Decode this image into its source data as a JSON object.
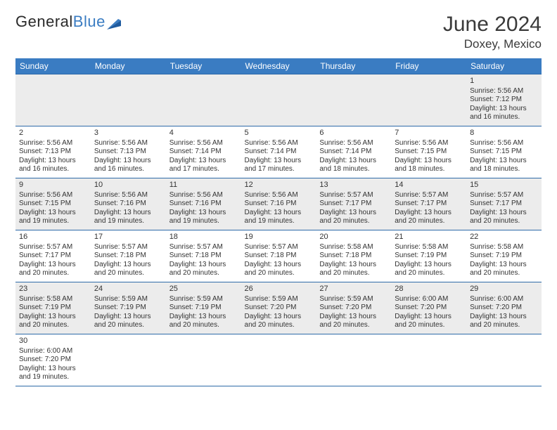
{
  "logo": {
    "text1": "General",
    "text2": "Blue"
  },
  "title": "June 2024",
  "location": "Doxey, Mexico",
  "colors": {
    "header_bg": "#3a7cc2",
    "header_text": "#ffffff",
    "row_odd_bg": "#ececec",
    "row_even_bg": "#ffffff",
    "border": "#2e6aa8",
    "text": "#333333"
  },
  "day_headers": [
    "Sunday",
    "Monday",
    "Tuesday",
    "Wednesday",
    "Thursday",
    "Friday",
    "Saturday"
  ],
  "weeks": [
    [
      null,
      null,
      null,
      null,
      null,
      null,
      {
        "n": "1",
        "sr": "Sunrise: 5:56 AM",
        "ss": "Sunset: 7:12 PM",
        "dl": "Daylight: 13 hours and 16 minutes."
      }
    ],
    [
      {
        "n": "2",
        "sr": "Sunrise: 5:56 AM",
        "ss": "Sunset: 7:13 PM",
        "dl": "Daylight: 13 hours and 16 minutes."
      },
      {
        "n": "3",
        "sr": "Sunrise: 5:56 AM",
        "ss": "Sunset: 7:13 PM",
        "dl": "Daylight: 13 hours and 16 minutes."
      },
      {
        "n": "4",
        "sr": "Sunrise: 5:56 AM",
        "ss": "Sunset: 7:14 PM",
        "dl": "Daylight: 13 hours and 17 minutes."
      },
      {
        "n": "5",
        "sr": "Sunrise: 5:56 AM",
        "ss": "Sunset: 7:14 PM",
        "dl": "Daylight: 13 hours and 17 minutes."
      },
      {
        "n": "6",
        "sr": "Sunrise: 5:56 AM",
        "ss": "Sunset: 7:14 PM",
        "dl": "Daylight: 13 hours and 18 minutes."
      },
      {
        "n": "7",
        "sr": "Sunrise: 5:56 AM",
        "ss": "Sunset: 7:15 PM",
        "dl": "Daylight: 13 hours and 18 minutes."
      },
      {
        "n": "8",
        "sr": "Sunrise: 5:56 AM",
        "ss": "Sunset: 7:15 PM",
        "dl": "Daylight: 13 hours and 18 minutes."
      }
    ],
    [
      {
        "n": "9",
        "sr": "Sunrise: 5:56 AM",
        "ss": "Sunset: 7:15 PM",
        "dl": "Daylight: 13 hours and 19 minutes."
      },
      {
        "n": "10",
        "sr": "Sunrise: 5:56 AM",
        "ss": "Sunset: 7:16 PM",
        "dl": "Daylight: 13 hours and 19 minutes."
      },
      {
        "n": "11",
        "sr": "Sunrise: 5:56 AM",
        "ss": "Sunset: 7:16 PM",
        "dl": "Daylight: 13 hours and 19 minutes."
      },
      {
        "n": "12",
        "sr": "Sunrise: 5:56 AM",
        "ss": "Sunset: 7:16 PM",
        "dl": "Daylight: 13 hours and 19 minutes."
      },
      {
        "n": "13",
        "sr": "Sunrise: 5:57 AM",
        "ss": "Sunset: 7:17 PM",
        "dl": "Daylight: 13 hours and 20 minutes."
      },
      {
        "n": "14",
        "sr": "Sunrise: 5:57 AM",
        "ss": "Sunset: 7:17 PM",
        "dl": "Daylight: 13 hours and 20 minutes."
      },
      {
        "n": "15",
        "sr": "Sunrise: 5:57 AM",
        "ss": "Sunset: 7:17 PM",
        "dl": "Daylight: 13 hours and 20 minutes."
      }
    ],
    [
      {
        "n": "16",
        "sr": "Sunrise: 5:57 AM",
        "ss": "Sunset: 7:17 PM",
        "dl": "Daylight: 13 hours and 20 minutes."
      },
      {
        "n": "17",
        "sr": "Sunrise: 5:57 AM",
        "ss": "Sunset: 7:18 PM",
        "dl": "Daylight: 13 hours and 20 minutes."
      },
      {
        "n": "18",
        "sr": "Sunrise: 5:57 AM",
        "ss": "Sunset: 7:18 PM",
        "dl": "Daylight: 13 hours and 20 minutes."
      },
      {
        "n": "19",
        "sr": "Sunrise: 5:57 AM",
        "ss": "Sunset: 7:18 PM",
        "dl": "Daylight: 13 hours and 20 minutes."
      },
      {
        "n": "20",
        "sr": "Sunrise: 5:58 AM",
        "ss": "Sunset: 7:18 PM",
        "dl": "Daylight: 13 hours and 20 minutes."
      },
      {
        "n": "21",
        "sr": "Sunrise: 5:58 AM",
        "ss": "Sunset: 7:19 PM",
        "dl": "Daylight: 13 hours and 20 minutes."
      },
      {
        "n": "22",
        "sr": "Sunrise: 5:58 AM",
        "ss": "Sunset: 7:19 PM",
        "dl": "Daylight: 13 hours and 20 minutes."
      }
    ],
    [
      {
        "n": "23",
        "sr": "Sunrise: 5:58 AM",
        "ss": "Sunset: 7:19 PM",
        "dl": "Daylight: 13 hours and 20 minutes."
      },
      {
        "n": "24",
        "sr": "Sunrise: 5:59 AM",
        "ss": "Sunset: 7:19 PM",
        "dl": "Daylight: 13 hours and 20 minutes."
      },
      {
        "n": "25",
        "sr": "Sunrise: 5:59 AM",
        "ss": "Sunset: 7:19 PM",
        "dl": "Daylight: 13 hours and 20 minutes."
      },
      {
        "n": "26",
        "sr": "Sunrise: 5:59 AM",
        "ss": "Sunset: 7:20 PM",
        "dl": "Daylight: 13 hours and 20 minutes."
      },
      {
        "n": "27",
        "sr": "Sunrise: 5:59 AM",
        "ss": "Sunset: 7:20 PM",
        "dl": "Daylight: 13 hours and 20 minutes."
      },
      {
        "n": "28",
        "sr": "Sunrise: 6:00 AM",
        "ss": "Sunset: 7:20 PM",
        "dl": "Daylight: 13 hours and 20 minutes."
      },
      {
        "n": "29",
        "sr": "Sunrise: 6:00 AM",
        "ss": "Sunset: 7:20 PM",
        "dl": "Daylight: 13 hours and 20 minutes."
      }
    ],
    [
      {
        "n": "30",
        "sr": "Sunrise: 6:00 AM",
        "ss": "Sunset: 7:20 PM",
        "dl": "Daylight: 13 hours and 19 minutes."
      },
      null,
      null,
      null,
      null,
      null,
      null
    ]
  ]
}
